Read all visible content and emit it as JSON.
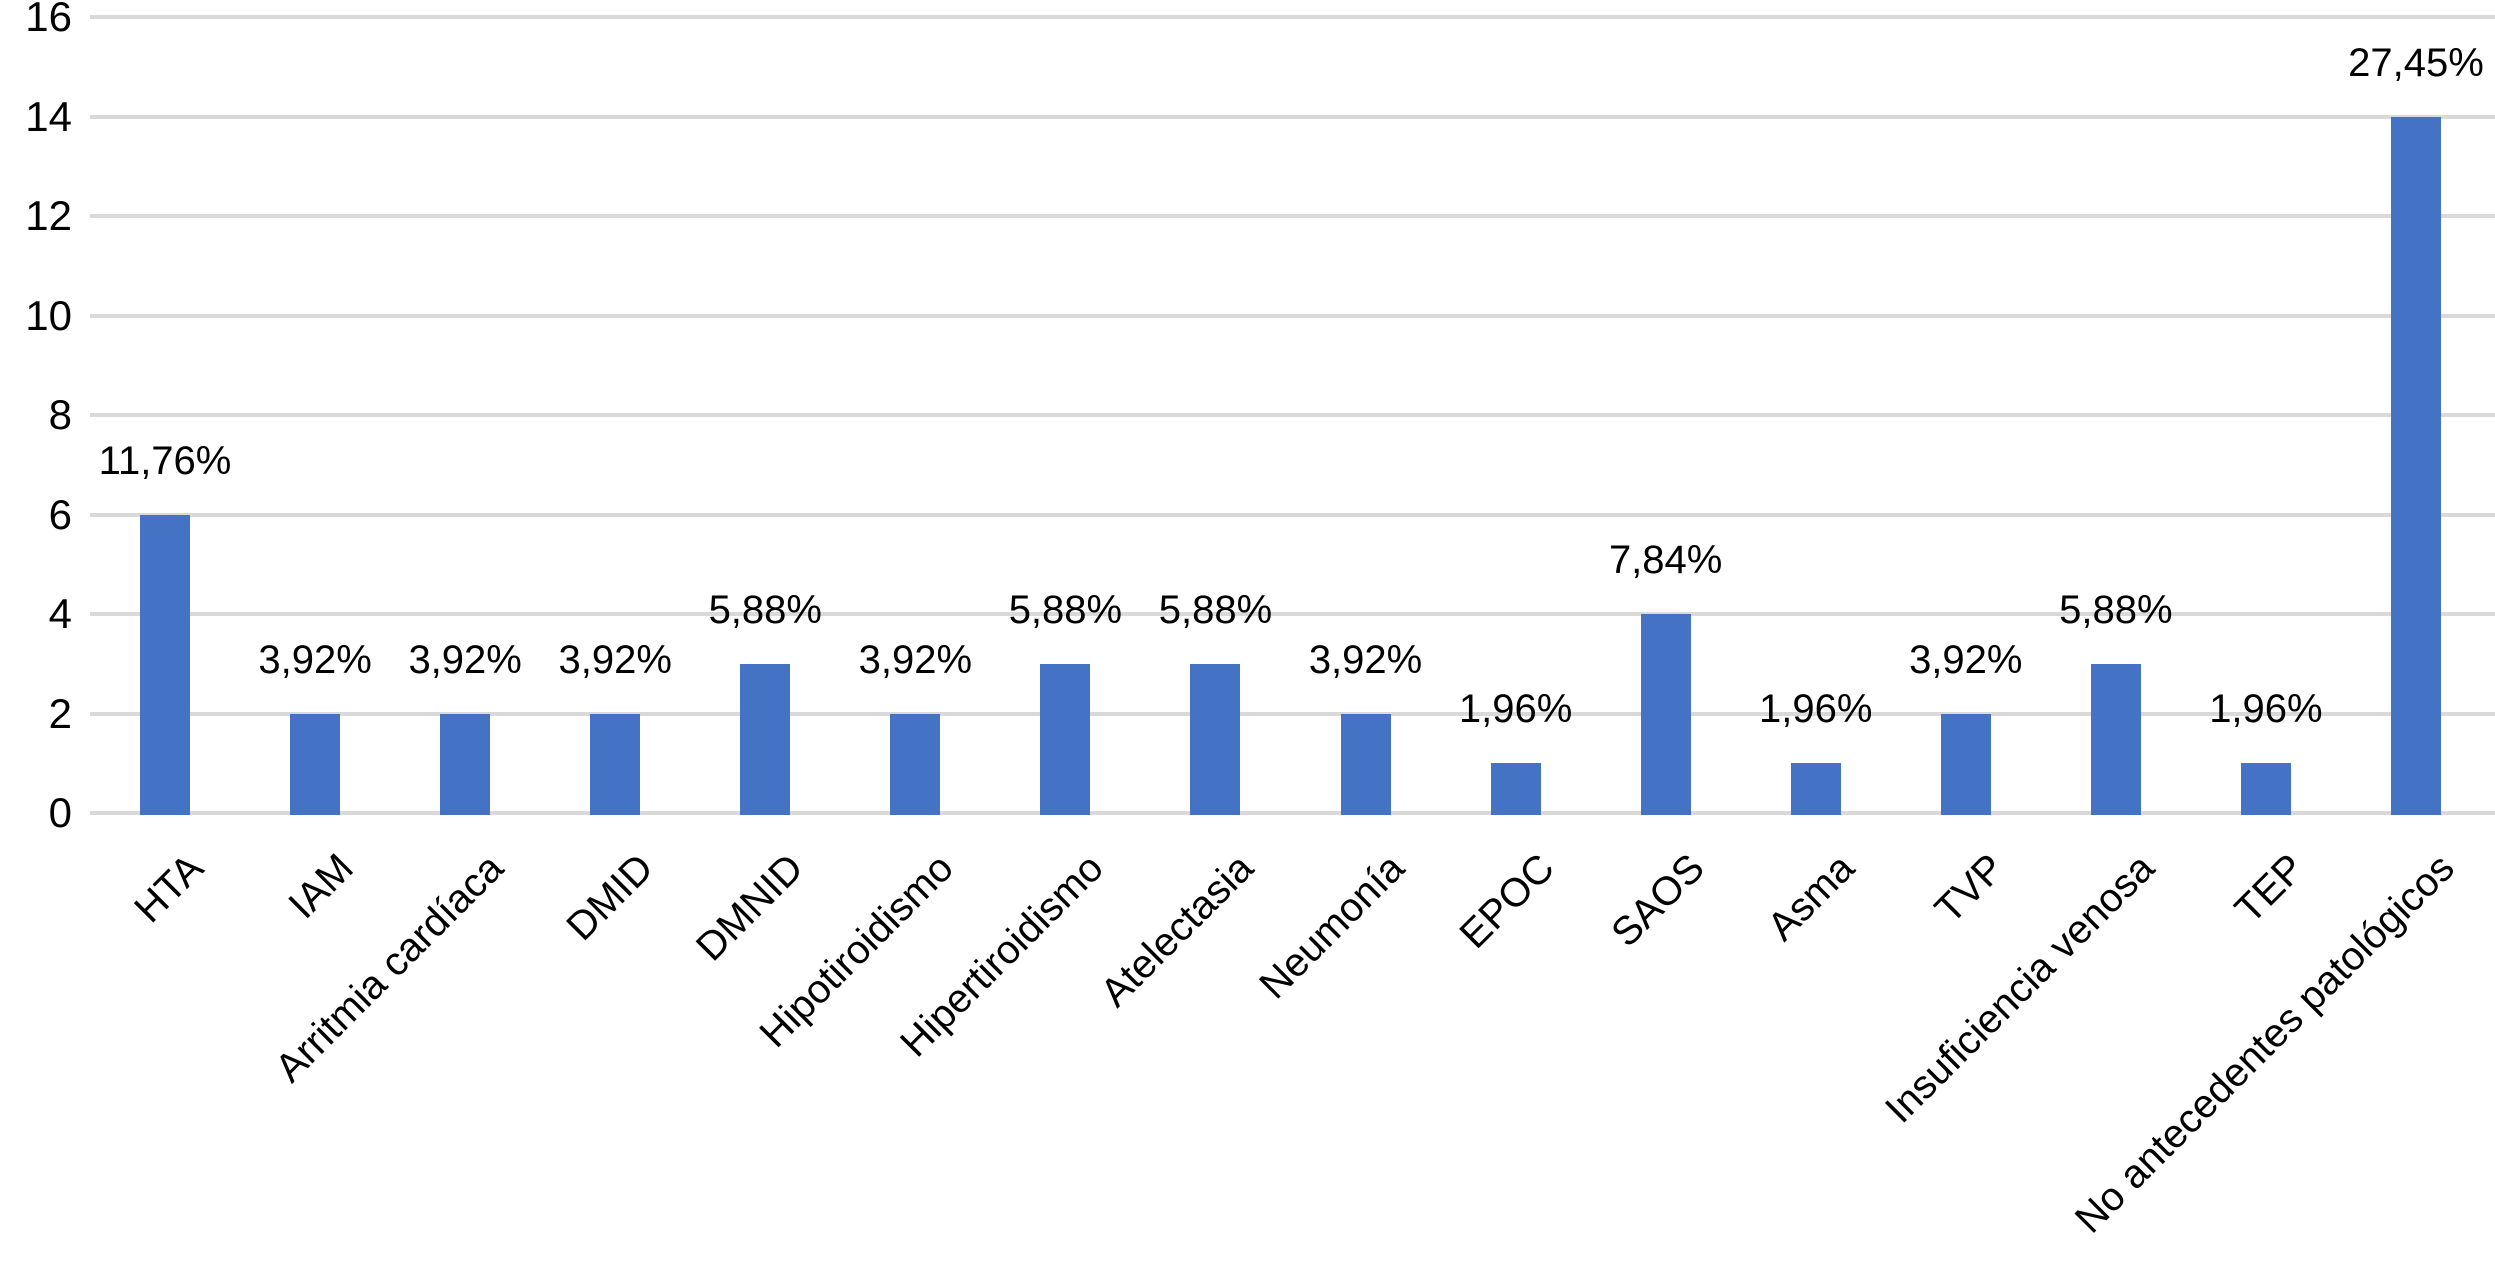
{
  "chart_data": {
    "type": "bar",
    "title": "",
    "xlabel": "",
    "ylabel": "",
    "categories": [
      "HTA",
      "IAM",
      "Arritmia cardíaca",
      "DMID",
      "DMNID",
      "Hipotiroidismo",
      "Hipertiroidismo",
      "Atelectasia",
      "Neumonía",
      "EPOC",
      "SAOS",
      "Asma",
      "TVP",
      "Insuficiencia venosa",
      "TEP",
      "No antecedentes patológicos"
    ],
    "values": [
      6,
      2,
      2,
      2,
      3,
      2,
      3,
      3,
      2,
      1,
      4,
      1,
      2,
      3,
      1,
      14
    ],
    "value_labels": [
      "11,76%",
      "3,92%",
      "3,92%",
      "3,92%",
      "5,88%",
      "3,92%",
      "5,88%",
      "5,88%",
      "3,92%",
      "1,96%",
      "7,84%",
      "1,96%",
      "3,92%",
      "5,88%",
      "1,96%",
      "27,45%"
    ],
    "ylim": [
      0,
      16
    ],
    "yticks": [
      0,
      2,
      4,
      6,
      8,
      10,
      12,
      14,
      16
    ],
    "grid": true,
    "legend_position": "none",
    "x_label_rotation_deg": 45,
    "colors": {
      "bar": "#4472C4",
      "gridline": "#D9D9D9",
      "text": "#000000",
      "background": "#FFFFFF"
    }
  }
}
